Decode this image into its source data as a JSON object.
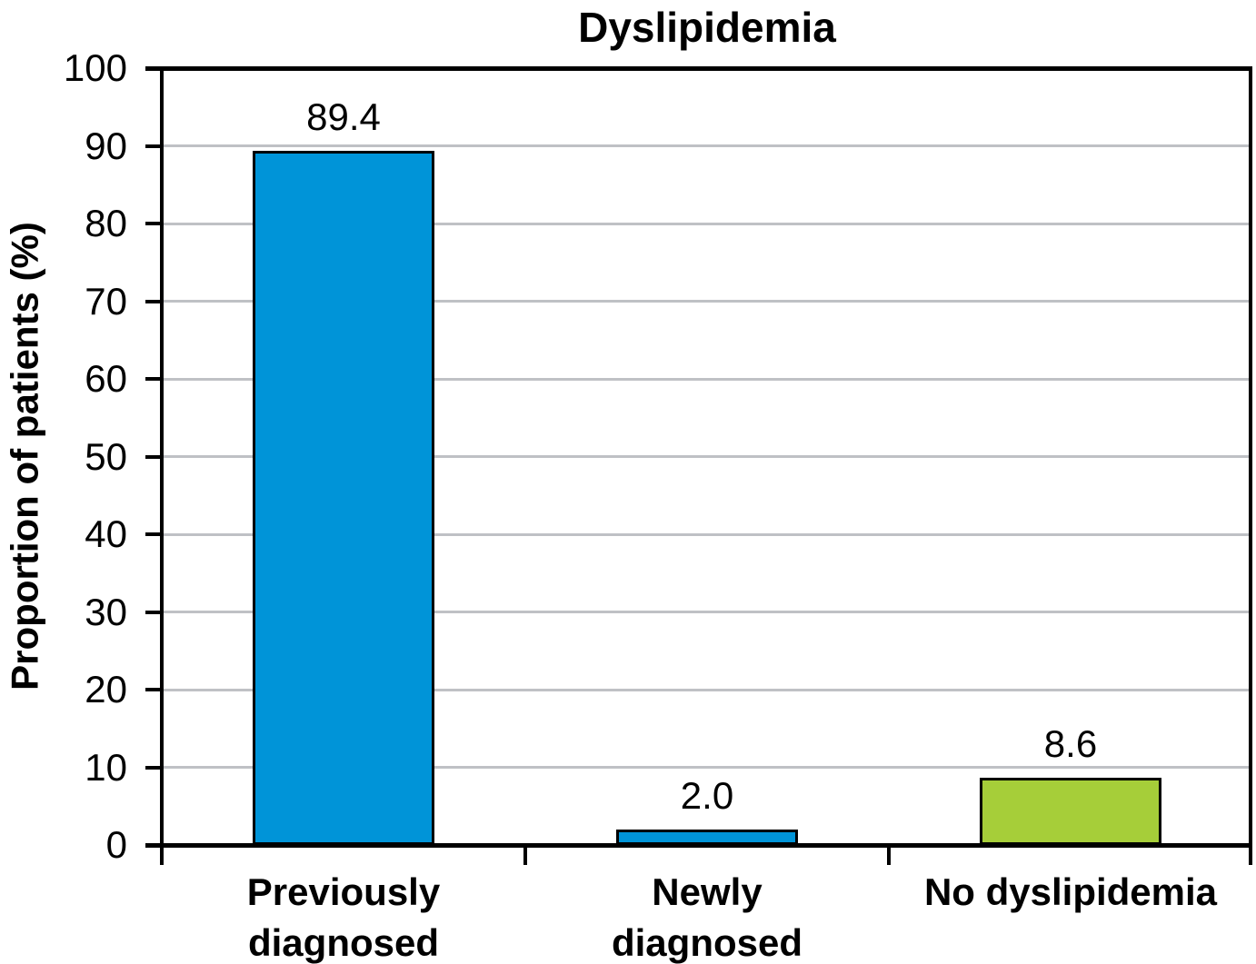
{
  "chart_data": {
    "type": "bar",
    "title": "Dyslipidemia",
    "ylabel": "Proportion of patients (%)",
    "xlabel": "",
    "ylim": [
      0,
      100
    ],
    "ytick_step": 10,
    "yticks": [
      "0",
      "10",
      "20",
      "30",
      "40",
      "50",
      "60",
      "70",
      "80",
      "90",
      "100"
    ],
    "grid": true,
    "legend": "none",
    "categories": [
      {
        "lines": [
          "Previously",
          "diagnosed"
        ]
      },
      {
        "lines": [
          "Newly",
          "diagnosed"
        ]
      },
      {
        "lines": [
          "No dyslipidemia"
        ]
      }
    ],
    "values": [
      89.4,
      2.0,
      8.6
    ],
    "value_labels": [
      "89.4",
      "2.0",
      "8.6"
    ],
    "bar_colors": [
      "#0094d8",
      "#0094d8",
      "#a6ce39"
    ],
    "colors": {
      "blue_bar": "#0094d8",
      "green_bar": "#a6ce39",
      "gridline": "#bfc1c5",
      "axis": "#000000",
      "text": "#000000",
      "background": "#ffffff"
    }
  }
}
